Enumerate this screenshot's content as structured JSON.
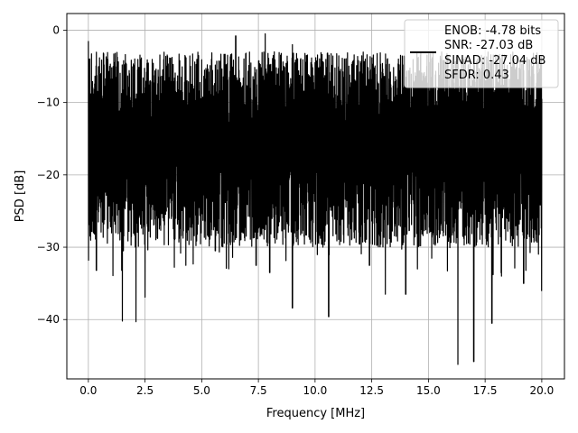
{
  "chart_data": {
    "type": "line",
    "title": "",
    "xlabel": "Frequency [MHz]",
    "ylabel": "PSD [dB]",
    "xlim": [
      -0.95,
      21.0
    ],
    "ylim": [
      -48.2,
      2.3
    ],
    "xticks": [
      0.0,
      2.5,
      5.0,
      7.5,
      10.0,
      12.5,
      15.0,
      17.5,
      20.0
    ],
    "xtick_labels": [
      "0.0",
      "2.5",
      "5.0",
      "7.5",
      "10.0",
      "12.5",
      "15.0",
      "17.5",
      "20.0"
    ],
    "yticks": [
      0,
      -10,
      -20,
      -30,
      -40
    ],
    "ytick_labels": [
      "0",
      "−10",
      "−20",
      "−30",
      "−40"
    ],
    "grid": true,
    "legend_position": "top-right",
    "series": [
      {
        "color": "#000000",
        "x_range": [
          0,
          20
        ],
        "noise_floor_db": -15,
        "peaks_db": [
          [
            0.0,
            -1.5
          ],
          [
            0.05,
            -4.0
          ],
          [
            0.2,
            -8.0
          ],
          [
            1.3,
            -7.5
          ],
          [
            2.5,
            -8.0
          ],
          [
            3.3,
            -5.5
          ],
          [
            4.5,
            -5.0
          ],
          [
            6.5,
            -0.8
          ],
          [
            7.8,
            -0.5
          ],
          [
            8.2,
            -3.0
          ],
          [
            9.0,
            -2.0
          ],
          [
            10.0,
            -4.5
          ],
          [
            11.3,
            -4.0
          ],
          [
            12.2,
            -5.0
          ],
          [
            13.0,
            -6.0
          ],
          [
            14.0,
            -6.5
          ],
          [
            16.3,
            -4.0
          ],
          [
            18.5,
            -8.0
          ],
          [
            19.5,
            -9.0
          ],
          [
            20.0,
            -9.5
          ]
        ],
        "troughs_db": [
          [
            0.0,
            -31.8
          ],
          [
            0.35,
            -33.2
          ],
          [
            1.5,
            -40.2
          ],
          [
            2.1,
            -40.3
          ],
          [
            2.5,
            -36.9
          ],
          [
            4.3,
            -32.5
          ],
          [
            5.6,
            -30.5
          ],
          [
            7.4,
            -32.5
          ],
          [
            8.0,
            -33.5
          ],
          [
            9.0,
            -38.4
          ],
          [
            10.6,
            -39.6
          ],
          [
            12.4,
            -32.5
          ],
          [
            13.1,
            -36.5
          ],
          [
            14.0,
            -36.5
          ],
          [
            16.3,
            -46.2
          ],
          [
            17.0,
            -45.8
          ],
          [
            17.8,
            -40.5
          ],
          [
            19.2,
            -35.0
          ],
          [
            20.0,
            -36.0
          ]
        ]
      }
    ]
  },
  "legend": {
    "lines": [
      "ENOB: -4.78 bits",
      "SNR: -27.03 dB",
      "SINAD: -27.04 dB",
      "SFDR: 0.43"
    ]
  }
}
